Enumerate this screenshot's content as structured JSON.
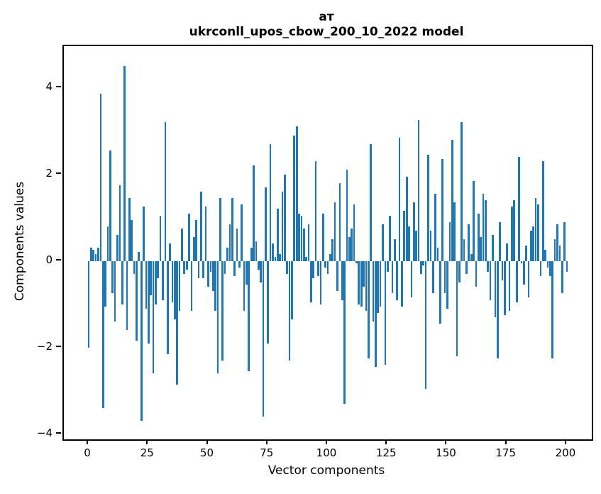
{
  "colors": {
    "bar": "#1f77b4",
    "axis": "#000000",
    "background": "#ffffff"
  },
  "chart_data": {
    "type": "bar",
    "title_line1": "ат",
    "title_line2": "ukrconll_upos_cbow_200_10_2022 model",
    "xlabel": "Vector components",
    "ylabel": "Components values",
    "x_ticks": [
      0,
      25,
      50,
      75,
      100,
      125,
      150,
      175,
      200
    ],
    "y_ticks": [
      4,
      2,
      0,
      -2,
      -4
    ],
    "xlim": [
      -10.4,
      210.4
    ],
    "ylim": [
      -4.12,
      4.96
    ],
    "grid": false,
    "legend": "none",
    "bar_width_units": 0.8,
    "values": [
      -2.0,
      0.3,
      0.25,
      0.15,
      0.3,
      3.87,
      -3.4,
      -1.05,
      0.8,
      2.55,
      -0.75,
      -1.4,
      0.6,
      1.75,
      -1.0,
      4.5,
      -1.6,
      1.45,
      0.95,
      -0.3,
      -1.85,
      0.2,
      -3.7,
      1.25,
      -1.1,
      -1.9,
      -0.8,
      -2.6,
      -1.0,
      -0.4,
      1.05,
      -0.9,
      3.2,
      -2.15,
      0.4,
      -0.95,
      -1.35,
      -2.85,
      -1.15,
      0.75,
      -0.3,
      -0.2,
      1.1,
      -1.15,
      0.55,
      0.95,
      -0.4,
      1.6,
      -0.4,
      1.25,
      -0.6,
      -0.25,
      -0.7,
      -1.15,
      -2.6,
      1.45,
      -2.3,
      -0.3,
      0.3,
      0.85,
      1.45,
      -0.35,
      0.75,
      -0.15,
      1.3,
      -1.15,
      -0.55,
      -2.55,
      0.3,
      2.2,
      0.45,
      -0.2,
      -0.5,
      -3.6,
      1.7,
      -1.9,
      2.7,
      0.4,
      0.1,
      1.2,
      0.15,
      1.6,
      2.0,
      -0.3,
      -2.3,
      -1.35,
      2.9,
      3.1,
      1.1,
      1.05,
      0.75,
      0.1,
      0.85,
      -0.95,
      -0.4,
      2.3,
      -0.35,
      -1.0,
      1.1,
      -0.15,
      -0.3,
      0.15,
      0.5,
      1.35,
      -0.7,
      1.8,
      -0.9,
      -3.3,
      2.1,
      0.55,
      0.75,
      1.3,
      -0.05,
      -1.0,
      -1.05,
      -0.6,
      -1.15,
      -2.25,
      2.7,
      -1.4,
      -2.45,
      -1.2,
      -1.05,
      0.85,
      -2.4,
      -0.25,
      1.05,
      -0.75,
      0.5,
      -0.9,
      2.85,
      -1.05,
      1.15,
      1.95,
      0.8,
      -0.85,
      1.35,
      0.7,
      3.25,
      -0.3,
      -0.1,
      -2.95,
      2.45,
      0.7,
      -0.75,
      1.55,
      0.3,
      -1.45,
      2.35,
      -0.75,
      -1.1,
      0.9,
      2.8,
      1.35,
      -2.2,
      -0.5,
      3.2,
      0.5,
      -0.3,
      0.85,
      0.15,
      1.85,
      -0.6,
      1.1,
      0.55,
      1.55,
      1.4,
      -0.25,
      -0.9,
      0.6,
      -1.3,
      -2.25,
      0.9,
      -0.45,
      -1.25,
      0.4,
      -1.15,
      1.25,
      1.4,
      -0.95,
      2.4,
      -0.05,
      -0.55,
      0.35,
      -0.85,
      0.7,
      0.8,
      1.45,
      1.3,
      -0.35,
      2.3,
      0.25,
      -0.15,
      -0.35,
      -2.25,
      0.5,
      0.85,
      0.35,
      -0.75,
      0.9,
      -0.25
    ]
  }
}
